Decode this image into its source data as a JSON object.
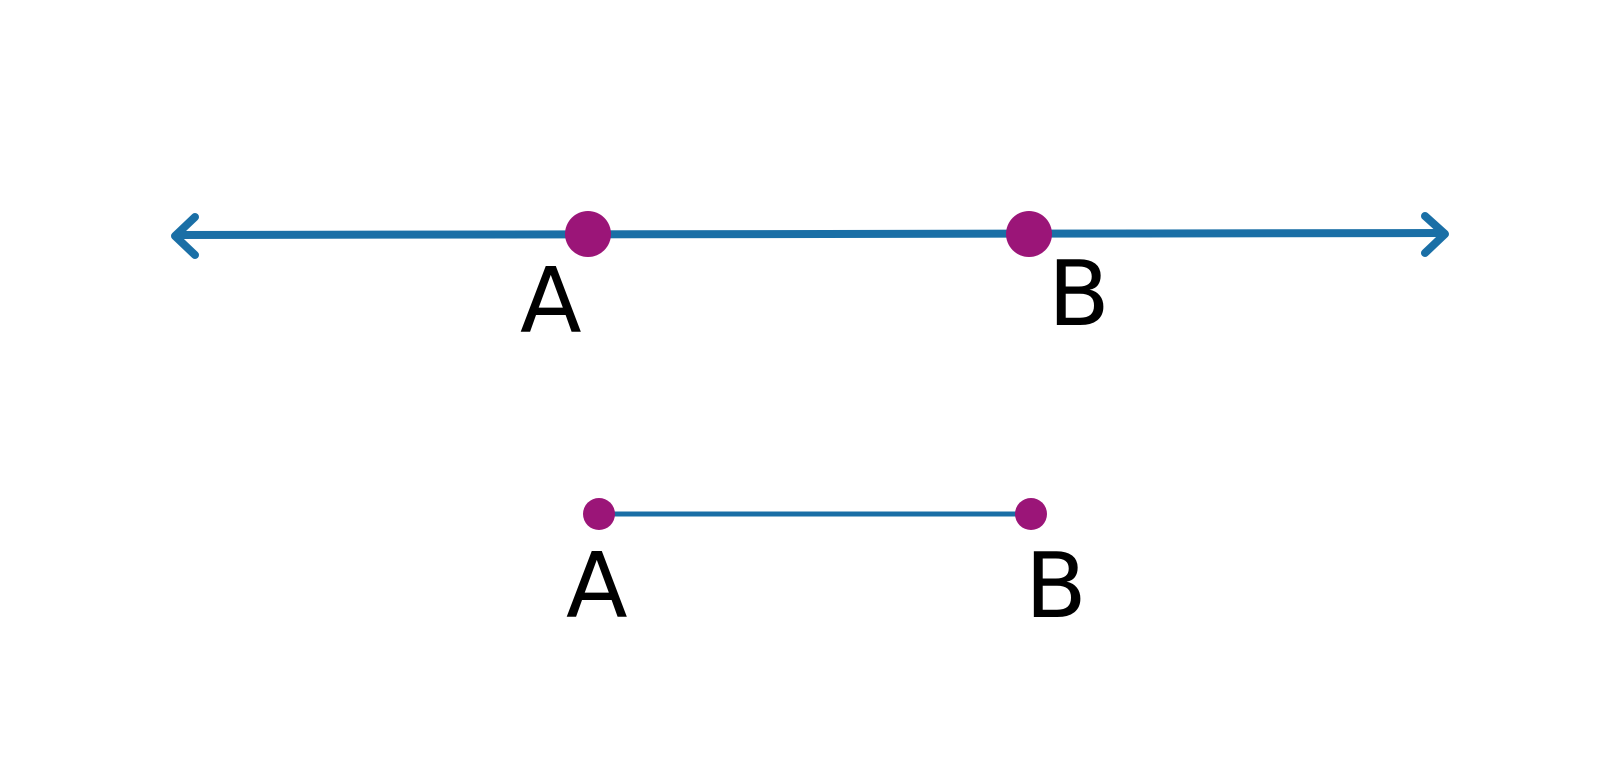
{
  "colors": {
    "line": "#1a6fa6",
    "point": "#9b1578",
    "label": "#000000"
  },
  "figures": {
    "line": {
      "kind": "line",
      "point_a_label": "A",
      "point_b_label": "B"
    },
    "segment": {
      "kind": "segment",
      "point_a_label": "A",
      "point_b_label": "B"
    }
  }
}
